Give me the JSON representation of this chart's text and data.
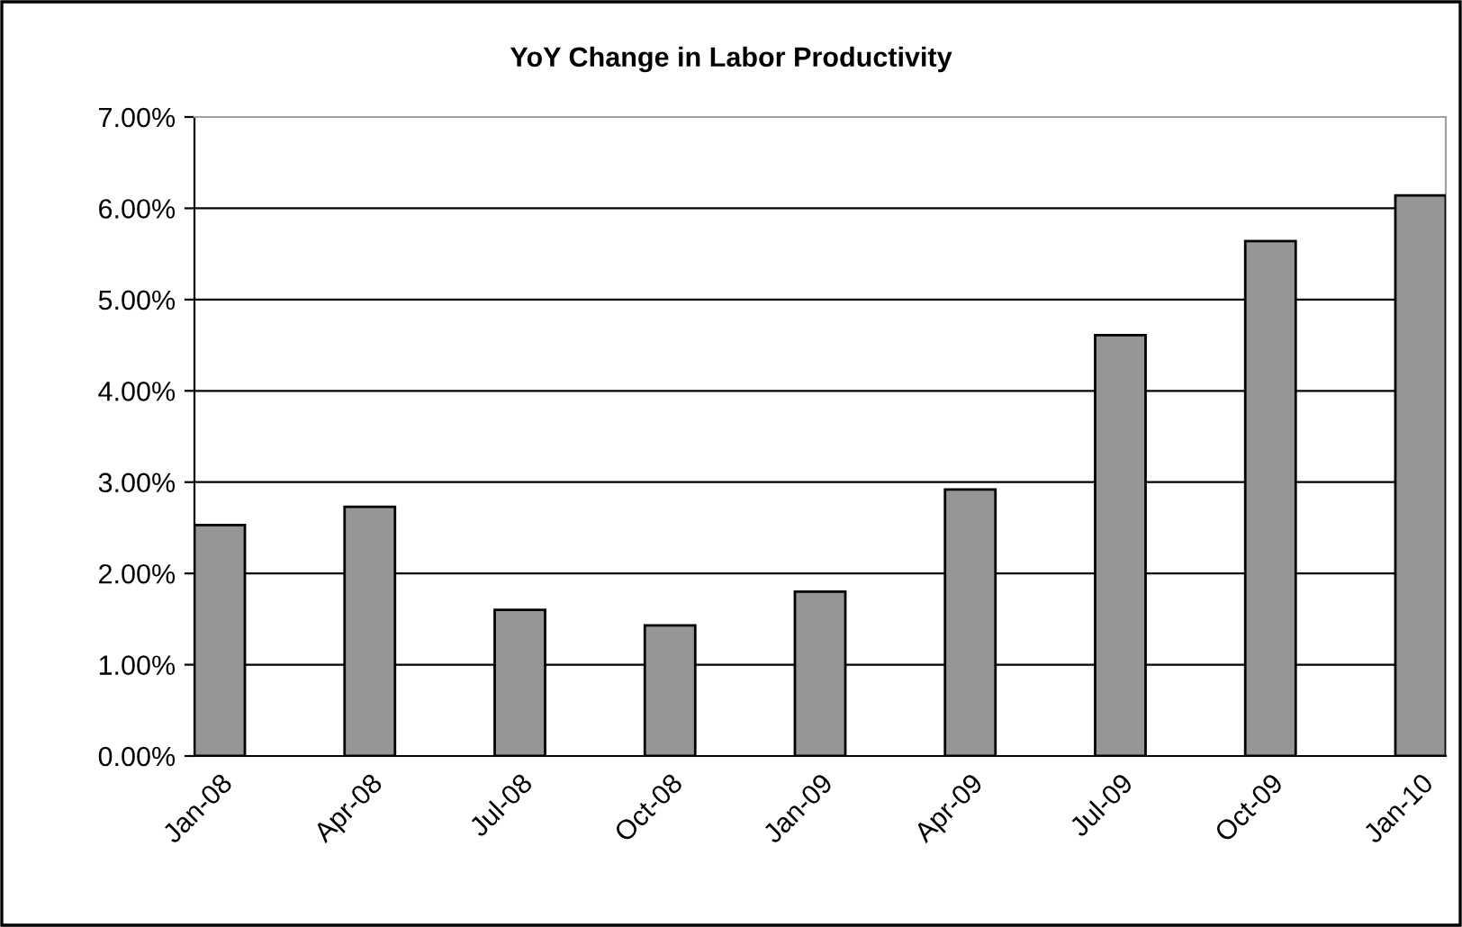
{
  "chart_data": {
    "type": "bar",
    "title": "YoY Change in Labor Productivity",
    "categories": [
      "Jan-08",
      "Apr-08",
      "Jul-08",
      "Oct-08",
      "Jan-09",
      "Apr-09",
      "Jul-09",
      "Oct-09",
      "Jan-10"
    ],
    "values": [
      2.53,
      2.73,
      1.6,
      1.43,
      1.8,
      2.92,
      4.61,
      5.64,
      6.14
    ],
    "color": "#969696",
    "ylim": [
      0,
      7
    ],
    "yticks": [
      {
        "value": 0,
        "label": "0.00%"
      },
      {
        "value": 1,
        "label": "1.00%"
      },
      {
        "value": 2,
        "label": "2.00%"
      },
      {
        "value": 3,
        "label": "3.00%"
      },
      {
        "value": 4,
        "label": "4.00%"
      },
      {
        "value": 5,
        "label": "5.00%"
      },
      {
        "value": 6,
        "label": "6.00%"
      },
      {
        "value": 7,
        "label": "7.00%"
      }
    ],
    "grid": "y"
  }
}
